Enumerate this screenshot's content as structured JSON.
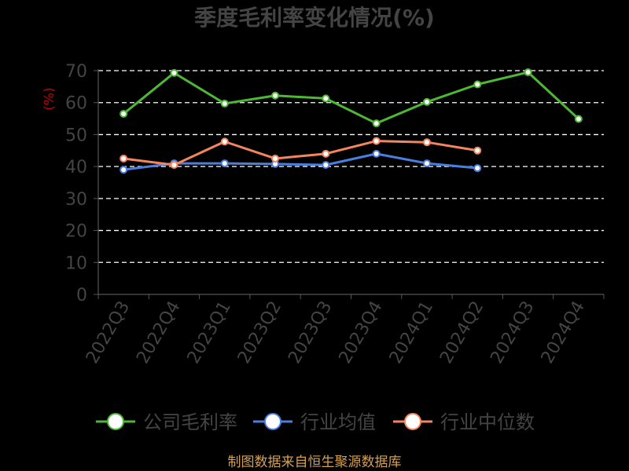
{
  "chart_data": {
    "type": "line",
    "title": "季度毛利率变化情况(%)",
    "ylabel": "(%)",
    "xlabel": "",
    "ylim": [
      0,
      70
    ],
    "yticks": [
      0,
      10,
      20,
      30,
      40,
      50,
      60,
      70
    ],
    "grid": true,
    "legend_position": "bottom",
    "categories": [
      "2022Q3",
      "2022Q4",
      "2023Q1",
      "2023Q2",
      "2023Q3",
      "2023Q4",
      "2024Q1",
      "2024Q2",
      "2024Q3",
      "2024Q4"
    ],
    "series": [
      {
        "name": "公司毛利率",
        "color": "#4db833",
        "values": [
          56.5,
          69.3,
          59.7,
          62.2,
          61.3,
          53.5,
          60.2,
          65.7,
          69.5,
          54.9
        ]
      },
      {
        "name": "行业均值",
        "color": "#4a7fe0",
        "values": [
          39.0,
          41.0,
          41.0,
          40.8,
          40.5,
          44.0,
          41.0,
          39.5,
          null,
          null
        ]
      },
      {
        "name": "行业中位数",
        "color": "#f5855e",
        "values": [
          42.5,
          40.5,
          47.8,
          42.5,
          44.0,
          48.0,
          47.6,
          45.0,
          null,
          null
        ]
      }
    ]
  },
  "source": "制图数据来自恒生聚源数据库"
}
